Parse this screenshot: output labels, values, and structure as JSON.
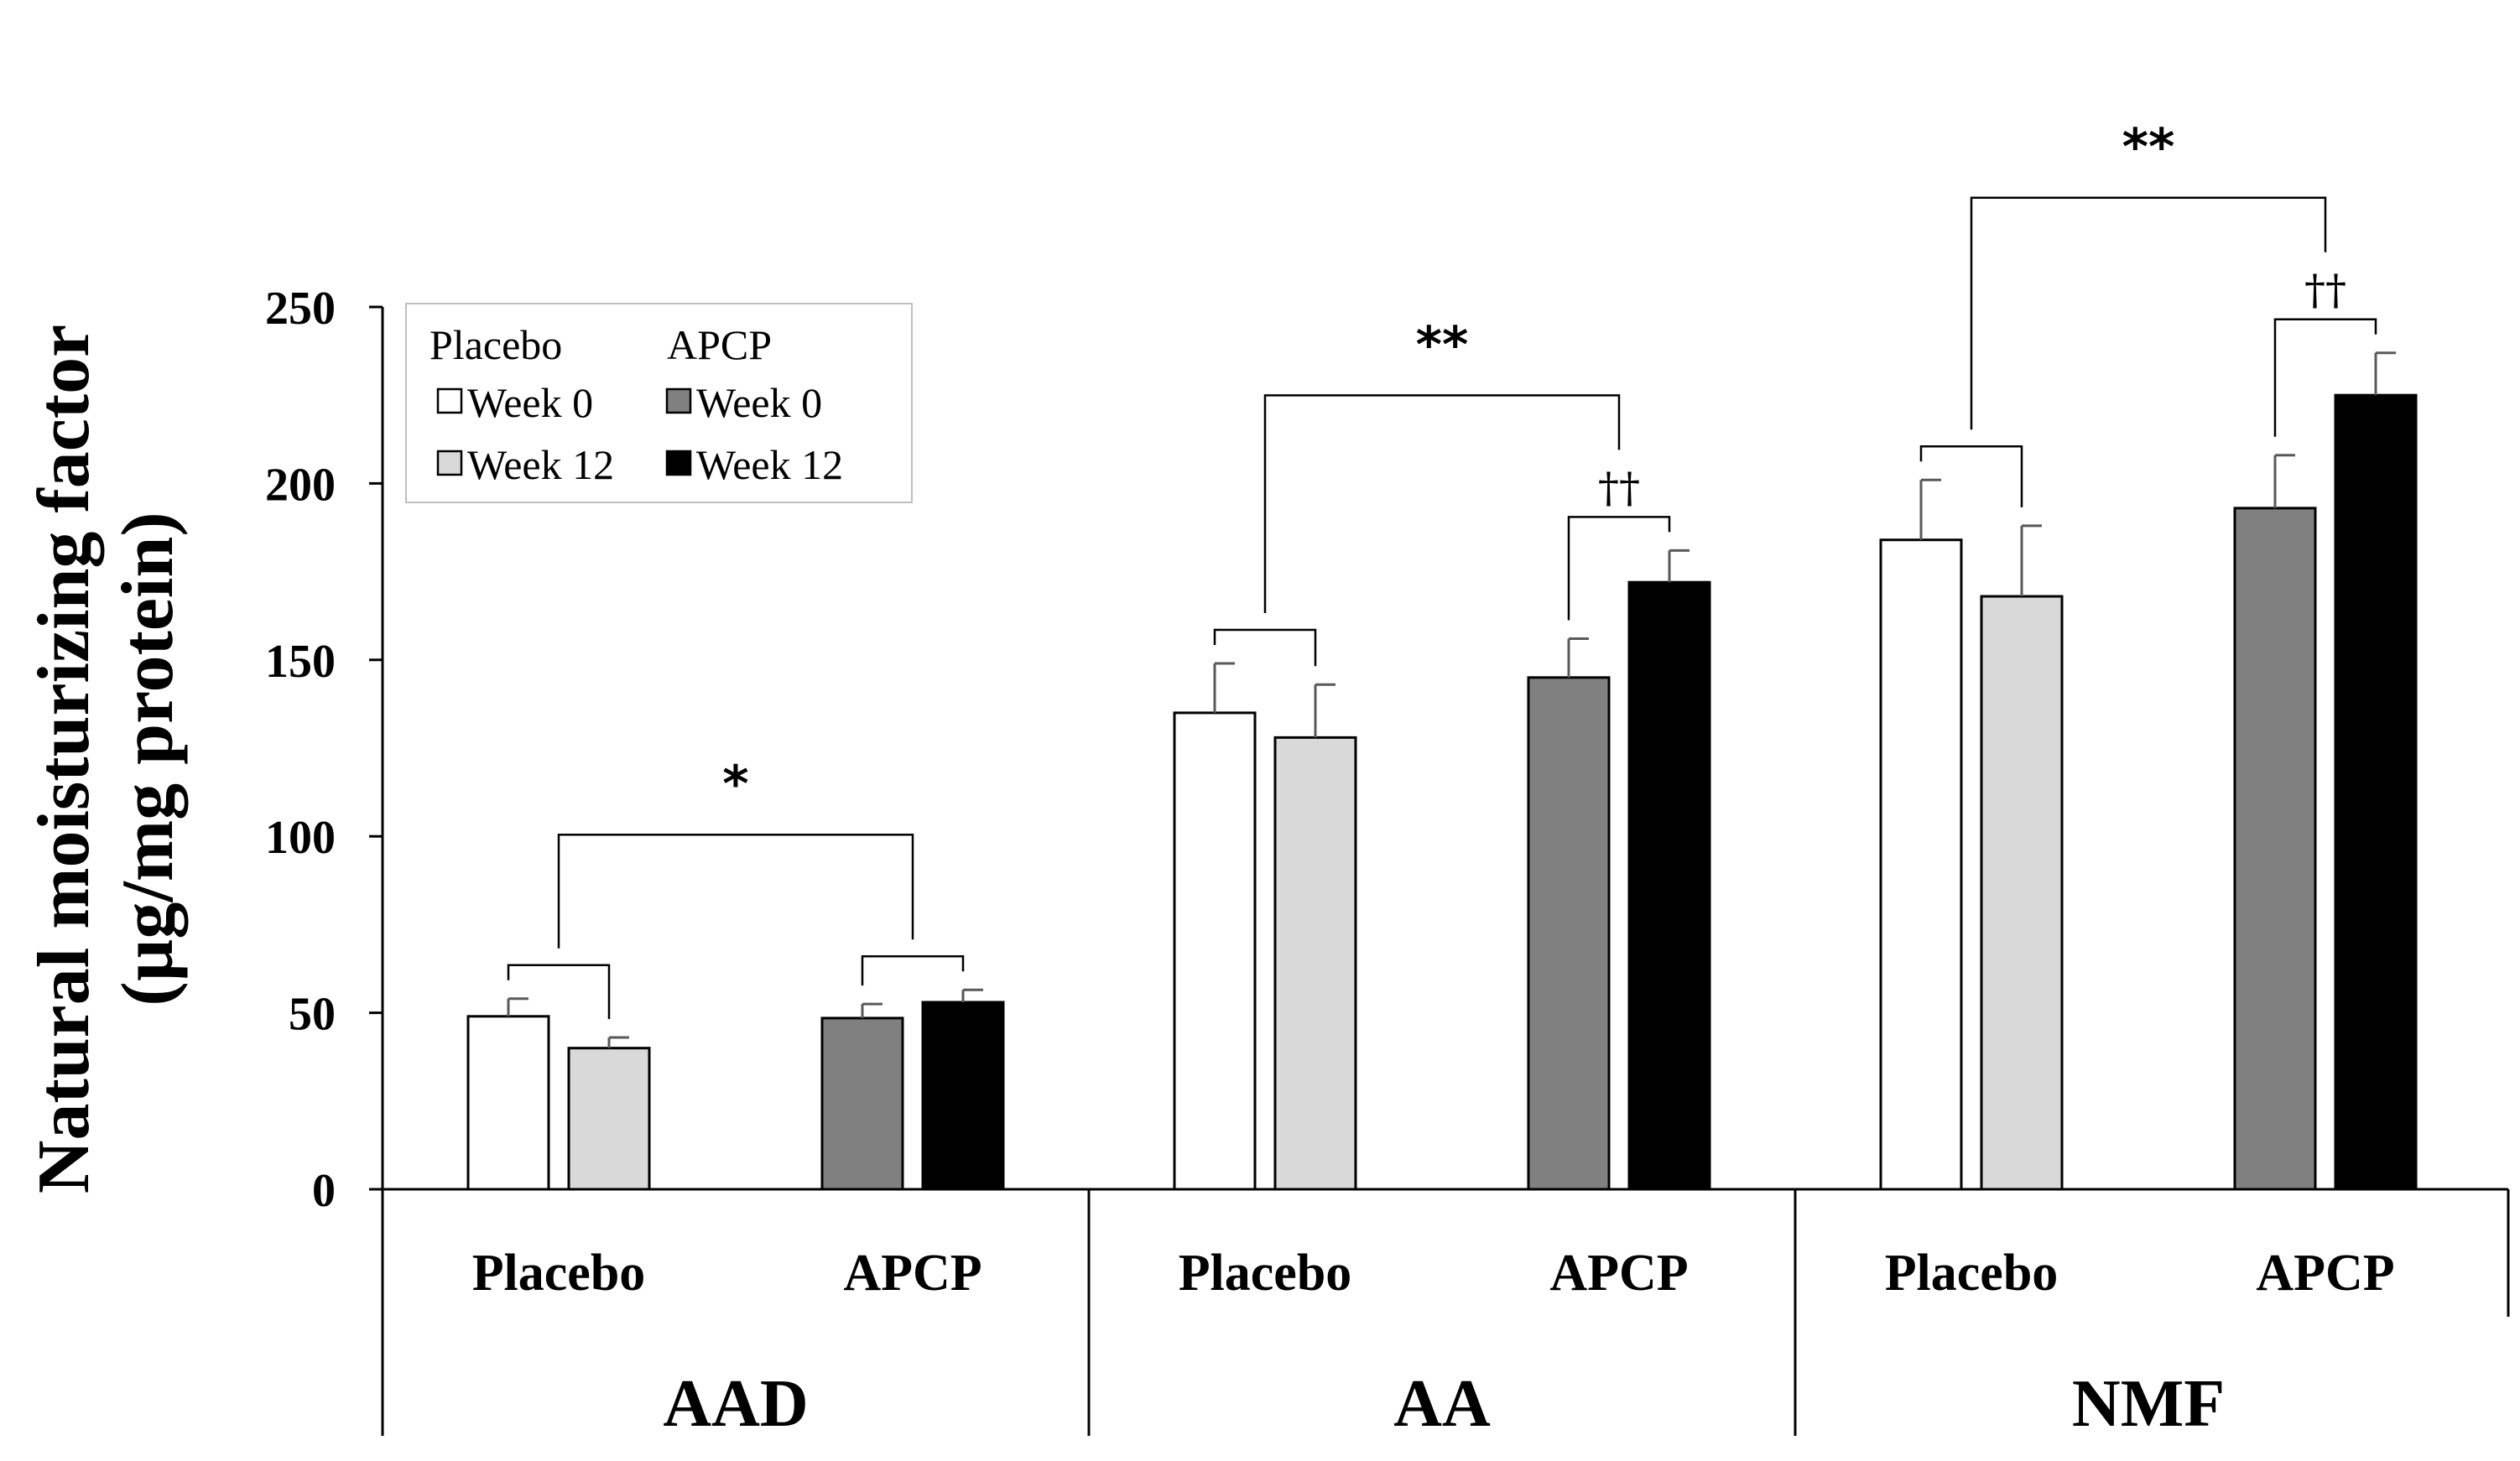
{
  "chart_data": {
    "type": "bar",
    "ylabel_line1": "Natural moisturizing factor",
    "ylabel_line2": "(µg/mg protein)",
    "ylim": [
      0,
      250
    ],
    "yticks": [
      0,
      50,
      100,
      150,
      200,
      250
    ],
    "groups": [
      {
        "name": "AAD",
        "subgroups": [
          {
            "name": "Placebo",
            "bars": [
              {
                "series": "Placebo Week 0",
                "value": 49,
                "err": 5
              },
              {
                "series": "Placebo Week 12",
                "value": 40,
                "err": 3
              }
            ]
          },
          {
            "name": "APCP",
            "bars": [
              {
                "series": "APCP Week 0",
                "value": 48.5,
                "err": 4
              },
              {
                "series": "APCP Week 12",
                "value": 53,
                "err": 3.5
              }
            ]
          }
        ]
      },
      {
        "name": "AA",
        "subgroups": [
          {
            "name": "Placebo",
            "bars": [
              {
                "series": "Placebo Week 0",
                "value": 135,
                "err": 14
              },
              {
                "series": "Placebo Week 12",
                "value": 128,
                "err": 15
              }
            ]
          },
          {
            "name": "APCP",
            "bars": [
              {
                "series": "APCP Week 0",
                "value": 145,
                "err": 11
              },
              {
                "series": "APCP Week 12",
                "value": 172,
                "err": 9
              }
            ]
          }
        ]
      },
      {
        "name": "NMF",
        "subgroups": [
          {
            "name": "Placebo",
            "bars": [
              {
                "series": "Placebo Week 0",
                "value": 184,
                "err": 17
              },
              {
                "series": "Placebo Week 12",
                "value": 168,
                "err": 20
              }
            ]
          },
          {
            "name": "APCP",
            "bars": [
              {
                "series": "APCP Week 0",
                "value": 193,
                "err": 15
              },
              {
                "series": "APCP Week 12",
                "value": 225,
                "err": 12
              }
            ]
          }
        ]
      }
    ],
    "series_colors": {
      "Placebo Week 0": "#ffffff",
      "Placebo Week 12": "#d9d9d9",
      "APCP Week 0": "#808080",
      "APCP Week 12": "#000000"
    },
    "legend": {
      "position": "top-left",
      "placebo_header": "Placebo",
      "apcp_header": "APCP",
      "entries": [
        {
          "series": "Placebo Week 0",
          "label": "Week 0"
        },
        {
          "series": "Placebo Week 12",
          "label": "Week 12"
        },
        {
          "series": "APCP Week 0",
          "label": "Week 0"
        },
        {
          "series": "APCP Week 12",
          "label": "Week 12"
        }
      ]
    },
    "annotations": {
      "between_group_symbols": [
        "*",
        "**",
        "**"
      ],
      "within_group_symbols": [
        "",
        "",
        "",
        "††",
        "",
        "††"
      ]
    }
  }
}
